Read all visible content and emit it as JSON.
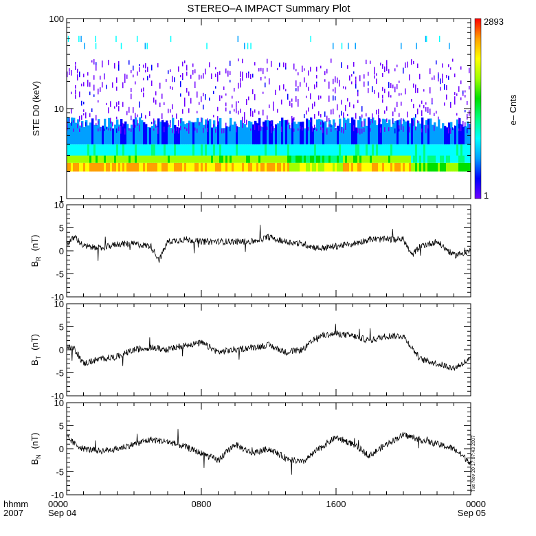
{
  "title": "STEREO–A IMPACT Summary Plot",
  "time_axis": {
    "unit_label": "hhmm",
    "year_label": "2007",
    "ticks": [
      {
        "hours": 0,
        "label": "0000",
        "date": "Sep 04"
      },
      {
        "hours": 8,
        "label": "0800",
        "date": ""
      },
      {
        "hours": 16,
        "label": "1600",
        "date": ""
      },
      {
        "hours": 24,
        "label": "0000",
        "date": "Sep 05"
      }
    ],
    "range_hours": [
      0,
      24
    ]
  },
  "timestamp": "Tue Nov 20 17:07:43 2007",
  "colorbar": {
    "label": "e– Cnts",
    "max_label": "2893",
    "min_label": "1",
    "colors": [
      "#7000ff",
      "#0000ff",
      "#00a0ff",
      "#00ffff",
      "#00ff80",
      "#00e000",
      "#a0ff00",
      "#ffff00",
      "#ffa000",
      "#ff0000"
    ]
  },
  "chart_data": [
    {
      "type": "heatmap",
      "ylabel": "STE D0 (keV)",
      "y_scale": "log",
      "ylim": [
        1,
        100
      ],
      "y_ticks": [
        {
          "value": 1,
          "label": "1"
        },
        {
          "value": 10,
          "label": "10"
        },
        {
          "value": 100,
          "label": "100"
        }
      ],
      "energy_floor_kev": 2,
      "xlim_hours": [
        0,
        24
      ],
      "clim_counts": [
        1,
        2893
      ]
    },
    {
      "type": "line",
      "ylabel_main": "B",
      "ylabel_sub": "R",
      "ylabel_unit": "(nT)",
      "ylim": [
        -10,
        10
      ],
      "y_ticks": [
        -10,
        -5,
        0,
        5,
        10
      ],
      "x_hours": [
        0,
        0.5,
        1,
        2,
        3,
        4,
        5,
        5.5,
        6,
        7,
        8,
        9,
        10,
        11,
        12,
        13,
        14,
        15,
        16,
        17,
        18,
        19,
        20,
        20.5,
        21,
        22,
        23,
        24
      ],
      "values": [
        1.5,
        3,
        1,
        0.5,
        1.5,
        1.5,
        1,
        -2,
        2,
        2.5,
        2,
        2,
        2,
        2,
        3,
        2,
        1.5,
        0.5,
        1,
        1.5,
        2.5,
        2.5,
        2.5,
        -1,
        1,
        2,
        -1,
        0
      ]
    },
    {
      "type": "line",
      "ylabel_main": "B",
      "ylabel_sub": "T",
      "ylabel_unit": "(nT)",
      "ylim": [
        -10,
        10
      ],
      "y_ticks": [
        -10,
        -5,
        0,
        5,
        10
      ],
      "x_hours": [
        0,
        0.5,
        1,
        2,
        3,
        4,
        5,
        6,
        7,
        8,
        9,
        10,
        11,
        12,
        13,
        14,
        15,
        16,
        17,
        18,
        19,
        20,
        21,
        22,
        23,
        24
      ],
      "values": [
        1,
        0,
        -3,
        -2,
        -1.5,
        0,
        0.5,
        0,
        1,
        1.5,
        -0.5,
        0,
        0.5,
        1,
        -0.5,
        0,
        3,
        3.5,
        3,
        2,
        3,
        3,
        -2,
        -3,
        -4,
        -2
      ]
    },
    {
      "type": "line",
      "ylabel_main": "B",
      "ylabel_sub": "N",
      "ylabel_unit": "(nT)",
      "ylim": [
        -10,
        10
      ],
      "y_ticks": [
        -10,
        -5,
        0,
        5,
        10
      ],
      "x_hours": [
        0,
        0.5,
        1,
        2,
        3,
        4,
        5,
        6,
        7,
        8,
        9,
        10,
        11,
        12,
        13,
        14,
        15,
        16,
        17,
        18,
        19,
        20,
        21,
        22,
        23,
        24
      ],
      "values": [
        2.5,
        1,
        0,
        -0.5,
        0,
        1,
        2,
        1.5,
        0.5,
        -1,
        -2.5,
        1,
        -1,
        0,
        -2,
        -3,
        0,
        2.5,
        1,
        -1.5,
        1,
        3,
        2,
        1,
        0,
        -3
      ]
    }
  ]
}
